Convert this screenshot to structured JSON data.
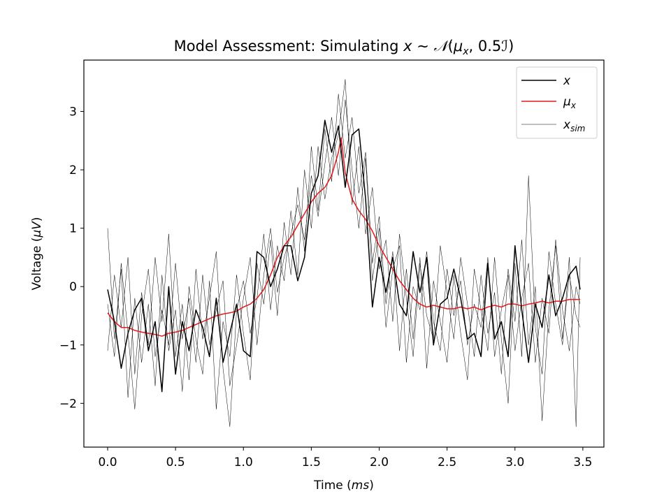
{
  "chart_data": {
    "type": "line",
    "title": {
      "prefix": "Model Assessment: Simulating ",
      "var": "x",
      "sim": " ∼ ",
      "dist": "𝒩",
      "open": "(",
      "mu": "μ",
      "mu_sub": "x",
      "sep": ", 0.5",
      "cov": "ℐ",
      "close": ")"
    },
    "xlabel": {
      "text": "Time (",
      "unit": "ms",
      "close": ")"
    },
    "ylabel": {
      "text": "Voltage (",
      "unit": "μV",
      "close": ")"
    },
    "xlim": [
      -0.175,
      3.655
    ],
    "ylim": [
      -2.75,
      3.88
    ],
    "xticks": [
      0.0,
      0.5,
      1.0,
      1.5,
      2.0,
      2.5,
      3.0,
      3.5
    ],
    "xtick_labels": [
      "0.0",
      "0.5",
      "1.0",
      "1.5",
      "2.0",
      "2.5",
      "3.0",
      "3.5"
    ],
    "yticks": [
      -2,
      -1,
      0,
      1,
      2,
      3
    ],
    "ytick_labels": [
      "−2",
      "−1",
      "0",
      "1",
      "2",
      "3"
    ],
    "legend_position": "top-right",
    "series": [
      {
        "key": "x",
        "name": "x",
        "color": "#000000",
        "style": "observed",
        "x": [
          0.0,
          0.05,
          0.1,
          0.15,
          0.2,
          0.25,
          0.3,
          0.35,
          0.4,
          0.45,
          0.5,
          0.55,
          0.6,
          0.65,
          0.7,
          0.75,
          0.8,
          0.85,
          0.9,
          0.95,
          1.0,
          1.05,
          1.1,
          1.15,
          1.2,
          1.25,
          1.3,
          1.35,
          1.4,
          1.45,
          1.5,
          1.55,
          1.6,
          1.65,
          1.7,
          1.75,
          1.8,
          1.85,
          1.9,
          1.95,
          2.0,
          2.05,
          2.1,
          2.15,
          2.2,
          2.25,
          2.3,
          2.35,
          2.4,
          2.45,
          2.5,
          2.55,
          2.6,
          2.65,
          2.7,
          2.75,
          2.8,
          2.85,
          2.9,
          2.95,
          3.0,
          3.05,
          3.1,
          3.15,
          3.2,
          3.25,
          3.3,
          3.35,
          3.4,
          3.45,
          3.48
        ],
        "y": [
          -0.05,
          -0.6,
          -1.4,
          -0.8,
          -0.4,
          -0.2,
          -1.1,
          -0.6,
          -1.8,
          0.0,
          -1.5,
          -0.6,
          -1.1,
          -0.4,
          -0.7,
          -1.2,
          -0.2,
          -1.3,
          -0.8,
          -0.3,
          -1.1,
          -1.2,
          0.6,
          0.5,
          0.0,
          0.3,
          0.7,
          0.7,
          0.1,
          0.5,
          1.6,
          1.9,
          2.85,
          2.3,
          2.75,
          1.7,
          2.6,
          2.7,
          1.5,
          -0.35,
          0.5,
          -0.1,
          0.5,
          -0.3,
          -0.5,
          0.6,
          -0.1,
          0.5,
          -1.0,
          -0.3,
          -0.2,
          0.3,
          -0.2,
          -0.9,
          -0.8,
          -1.2,
          0.4,
          -0.9,
          -0.6,
          -1.2,
          0.7,
          -0.4,
          -1.3,
          -0.3,
          -0.7,
          0.2,
          -0.5,
          -0.2,
          0.2,
          0.35,
          -0.05
        ]
      },
      {
        "key": "mu",
        "name": "μ",
        "name_sub": "x",
        "color": "#e41a1c",
        "style": "mean",
        "x": [
          0.0,
          0.05,
          0.1,
          0.15,
          0.2,
          0.25,
          0.3,
          0.35,
          0.4,
          0.45,
          0.5,
          0.55,
          0.6,
          0.65,
          0.7,
          0.75,
          0.8,
          0.85,
          0.9,
          0.95,
          1.0,
          1.05,
          1.1,
          1.15,
          1.2,
          1.25,
          1.3,
          1.35,
          1.4,
          1.45,
          1.5,
          1.55,
          1.6,
          1.65,
          1.7,
          1.72,
          1.75,
          1.8,
          1.85,
          1.9,
          1.95,
          2.0,
          2.05,
          2.1,
          2.15,
          2.2,
          2.25,
          2.3,
          2.35,
          2.4,
          2.45,
          2.5,
          2.55,
          2.6,
          2.65,
          2.7,
          2.75,
          2.8,
          2.85,
          2.9,
          2.95,
          3.0,
          3.05,
          3.1,
          3.15,
          3.2,
          3.25,
          3.3,
          3.35,
          3.4,
          3.45,
          3.48
        ],
        "y": [
          -0.45,
          -0.6,
          -0.7,
          -0.7,
          -0.75,
          -0.78,
          -0.8,
          -0.82,
          -0.85,
          -0.8,
          -0.78,
          -0.75,
          -0.7,
          -0.65,
          -0.6,
          -0.55,
          -0.5,
          -0.47,
          -0.45,
          -0.42,
          -0.35,
          -0.3,
          -0.2,
          -0.05,
          0.2,
          0.5,
          0.7,
          0.85,
          1.05,
          1.25,
          1.45,
          1.6,
          1.7,
          1.9,
          2.3,
          2.55,
          1.95,
          1.5,
          1.3,
          1.15,
          0.95,
          0.7,
          0.5,
          0.3,
          0.1,
          -0.05,
          -0.2,
          -0.3,
          -0.35,
          -0.32,
          -0.35,
          -0.38,
          -0.38,
          -0.35,
          -0.38,
          -0.35,
          -0.4,
          -0.35,
          -0.32,
          -0.35,
          -0.3,
          -0.3,
          -0.33,
          -0.3,
          -0.28,
          -0.25,
          -0.28,
          -0.25,
          -0.25,
          -0.22,
          -0.22,
          -0.22
        ]
      },
      {
        "key": "sim",
        "name": "x",
        "name_sub": "sim",
        "color": "#000000",
        "style": "simulated",
        "x": [
          0.0,
          0.05,
          0.1,
          0.15,
          0.2,
          0.25,
          0.3,
          0.35,
          0.4,
          0.45,
          0.5,
          0.55,
          0.6,
          0.65,
          0.7,
          0.75,
          0.8,
          0.85,
          0.9,
          0.95,
          1.0,
          1.05,
          1.1,
          1.15,
          1.2,
          1.25,
          1.3,
          1.35,
          1.4,
          1.45,
          1.5,
          1.55,
          1.6,
          1.65,
          1.7,
          1.75,
          1.8,
          1.85,
          1.9,
          1.95,
          2.0,
          2.05,
          2.1,
          2.15,
          2.2,
          2.25,
          2.3,
          2.35,
          2.4,
          2.45,
          2.5,
          2.55,
          2.6,
          2.65,
          2.7,
          2.75,
          2.8,
          2.85,
          2.9,
          2.95,
          3.0,
          3.05,
          3.1,
          3.15,
          3.2,
          3.25,
          3.3,
          3.35,
          3.4,
          3.45,
          3.48
        ],
        "y": [
          1.0,
          -0.9,
          0.3,
          -1.9,
          -0.2,
          -1.3,
          -0.3,
          -1.7,
          0.2,
          -1.1,
          -0.4,
          -1.8,
          0.0,
          -0.9,
          -1.5,
          0.1,
          -2.1,
          -0.6,
          -1.2,
          0.2,
          -0.8,
          -1.6,
          0.4,
          -0.3,
          0.8,
          -0.5,
          1.1,
          0.2,
          1.7,
          0.6,
          2.4,
          1.3,
          2.7,
          1.8,
          3.3,
          2.2,
          2.9,
          1.6,
          2.3,
          0.4,
          1.2,
          -0.3,
          0.6,
          -1.1,
          0.3,
          -0.9,
          0.5,
          -1.4,
          0.1,
          -0.6,
          -1.3,
          0.2,
          -0.8,
          -1.6,
          0.3,
          -0.4,
          -1.1,
          0.5,
          -0.9,
          -2.0,
          0.4,
          -1.2,
          1.9,
          -0.7,
          -1.5,
          0.6,
          -0.3,
          -1.0,
          0.5,
          -2.4,
          0.5
        ]
      },
      {
        "key": "sim2",
        "color": "#000000",
        "style": "simulated",
        "x": [
          0.0,
          0.05,
          0.1,
          0.15,
          0.2,
          0.25,
          0.3,
          0.35,
          0.4,
          0.45,
          0.5,
          0.55,
          0.6,
          0.65,
          0.7,
          0.75,
          0.8,
          0.85,
          0.9,
          0.95,
          1.0,
          1.05,
          1.1,
          1.15,
          1.2,
          1.25,
          1.3,
          1.35,
          1.4,
          1.45,
          1.5,
          1.55,
          1.6,
          1.65,
          1.7,
          1.75,
          1.8,
          1.85,
          1.9,
          1.95,
          2.0,
          2.05,
          2.1,
          2.15,
          2.2,
          2.25,
          2.3,
          2.35,
          2.4,
          2.45,
          2.5,
          2.55,
          2.6,
          2.65,
          2.7,
          2.75,
          2.8,
          2.85,
          2.9,
          2.95,
          3.0,
          3.05,
          3.1,
          3.15,
          3.2,
          3.25,
          3.3,
          3.35,
          3.4,
          3.45,
          3.48
        ],
        "y": [
          -1.1,
          0.2,
          -0.7,
          0.5,
          -1.5,
          -0.1,
          -1.0,
          0.5,
          -0.6,
          0.9,
          -1.2,
          -0.3,
          -1.6,
          0.3,
          -0.9,
          -0.2,
          0.6,
          -1.4,
          -2.4,
          -0.4,
          0.1,
          -0.8,
          -0.2,
          0.9,
          -0.4,
          0.7,
          0.1,
          1.3,
          0.2,
          2.0,
          1.0,
          2.4,
          1.5,
          2.2,
          2.6,
          3.55,
          1.4,
          2.4,
          0.9,
          1.7,
          0.3,
          0.8,
          -0.6,
          0.9,
          -0.2,
          -1.2,
          0.4,
          -0.5,
          -0.9,
          0.7,
          -0.1,
          -0.9,
          0.5,
          -0.3,
          -1.2,
          0.2,
          -0.8,
          -0.1,
          -1.5,
          0.3,
          -0.6,
          0.8,
          -1.0,
          0.0,
          -2.3,
          -0.4,
          0.7,
          -0.9,
          0.2,
          -0.5,
          -0.7
        ]
      },
      {
        "key": "sim3",
        "color": "#000000",
        "style": "simulated",
        "x": [
          0.0,
          0.05,
          0.1,
          0.15,
          0.2,
          0.25,
          0.3,
          0.35,
          0.4,
          0.45,
          0.5,
          0.55,
          0.6,
          0.65,
          0.7,
          0.75,
          0.8,
          0.85,
          0.9,
          0.95,
          1.0,
          1.05,
          1.1,
          1.15,
          1.2,
          1.25,
          1.3,
          1.35,
          1.4,
          1.45,
          1.5,
          1.55,
          1.6,
          1.65,
          1.7,
          1.75,
          1.8,
          1.85,
          1.9,
          1.95,
          2.0,
          2.05,
          2.1,
          2.15,
          2.2,
          2.25,
          2.3,
          2.35,
          2.4,
          2.45,
          2.5,
          2.55,
          2.6,
          2.65,
          2.7,
          2.75,
          2.8,
          2.85,
          2.9,
          2.95,
          3.0,
          3.05,
          3.1,
          3.15,
          3.2,
          3.25,
          3.3,
          3.35,
          3.4,
          3.45,
          3.48
        ],
        "y": [
          -0.3,
          -1.2,
          0.4,
          -0.8,
          -2.1,
          -0.5,
          0.3,
          -1.2,
          -0.4,
          -1.0,
          0.4,
          -0.9,
          -0.2,
          -1.3,
          0.2,
          -1.0,
          -0.4,
          0.1,
          -1.7,
          -1.0,
          -0.2,
          0.5,
          -1.0,
          0.2,
          1.0,
          -0.1,
          0.5,
          0.9,
          1.4,
          0.8,
          1.9,
          1.2,
          2.1,
          2.9,
          1.9,
          3.2,
          2.0,
          1.0,
          2.2,
          0.1,
          1.0,
          -0.7,
          0.3,
          0.7,
          -1.3,
          0.0,
          -0.4,
          0.6,
          -0.6,
          -1.1,
          0.3,
          -0.5,
          0.1,
          -1.0,
          -0.3,
          -0.7,
          0.5,
          -1.2,
          -0.4,
          0.2,
          -1.1,
          -0.2,
          0.4,
          -1.3,
          -0.2,
          -0.8,
          0.8,
          -0.4,
          -1.1,
          0.0,
          -0.3
        ]
      }
    ]
  }
}
